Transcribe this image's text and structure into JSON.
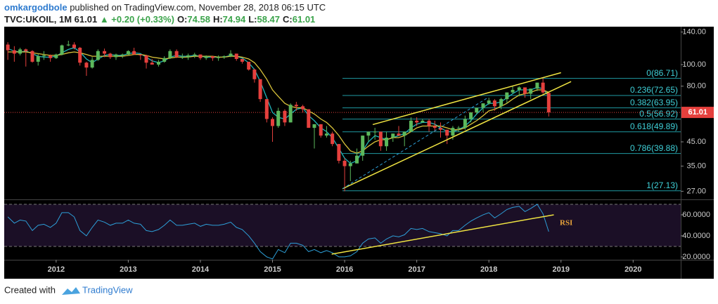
{
  "chart_data": {
    "type": "candlestick",
    "header": {
      "author": "omkargodbole",
      "published": "published on TradingView.com, November 28, 2018 06:15 UTC",
      "symbol": "TVC:UKOIL, 1M 61.01",
      "change": "▲ +0.20 (+0.33%)",
      "ohlc": [
        [
          "O:",
          "74.58"
        ],
        [
          "H:",
          "74.94"
        ],
        [
          "L:",
          "58.47"
        ],
        [
          "C:",
          "61.01"
        ]
      ]
    },
    "x": [
      2011.33,
      2011.42,
      2011.5,
      2011.58,
      2011.67,
      2011.75,
      2011.83,
      2011.92,
      2012,
      2012.08,
      2012.17,
      2012.25,
      2012.33,
      2012.42,
      2012.5,
      2012.58,
      2012.67,
      2012.75,
      2012.83,
      2012.92,
      2013,
      2013.08,
      2013.17,
      2013.25,
      2013.33,
      2013.42,
      2013.5,
      2013.58,
      2013.67,
      2013.75,
      2013.83,
      2013.92,
      2014,
      2014.08,
      2014.17,
      2014.25,
      2014.33,
      2014.42,
      2014.5,
      2014.58,
      2014.67,
      2014.75,
      2014.83,
      2014.92,
      2015,
      2015.08,
      2015.17,
      2015.25,
      2015.33,
      2015.42,
      2015.5,
      2015.58,
      2015.67,
      2015.75,
      2015.83,
      2015.92,
      2016,
      2016.08,
      2016.17,
      2016.25,
      2016.33,
      2016.42,
      2016.5,
      2016.58,
      2016.67,
      2016.75,
      2016.83,
      2016.92,
      2017,
      2017.08,
      2017.17,
      2017.25,
      2017.33,
      2017.42,
      2017.5,
      2017.58,
      2017.67,
      2017.75,
      2017.83,
      2017.92,
      2018,
      2018.08,
      2018.17,
      2018.25,
      2018.33,
      2018.42,
      2018.5,
      2018.58,
      2018.67,
      2018.75,
      2018.83
    ],
    "candles": [
      [
        123,
        126,
        105,
        116
      ],
      [
        116,
        121,
        103,
        112
      ],
      [
        112,
        119,
        110,
        117
      ],
      [
        117,
        118,
        98,
        115
      ],
      [
        115,
        116,
        102,
        103
      ],
      [
        103,
        112,
        99,
        109
      ],
      [
        109,
        115,
        105,
        110
      ],
      [
        110,
        111,
        103,
        107
      ],
      [
        107,
        112,
        106,
        111
      ],
      [
        111,
        123,
        110,
        122
      ],
      [
        122,
        128,
        121,
        123
      ],
      [
        123,
        126,
        117,
        119
      ],
      [
        119,
        120,
        99,
        102
      ],
      [
        102,
        103,
        89,
        97
      ],
      [
        97,
        108,
        96,
        105
      ],
      [
        105,
        117,
        104,
        115
      ],
      [
        115,
        118,
        108,
        112
      ],
      [
        112,
        113,
        106,
        108
      ],
      [
        108,
        112,
        105,
        111
      ],
      [
        111,
        112,
        107,
        111
      ],
      [
        111,
        116,
        110,
        115
      ],
      [
        115,
        119,
        111,
        111
      ],
      [
        111,
        111,
        105,
        110
      ],
      [
        110,
        110,
        96,
        102
      ],
      [
        102,
        106,
        100,
        100
      ],
      [
        100,
        105,
        98,
        103
      ],
      [
        103,
        109,
        102,
        107
      ],
      [
        107,
        117,
        106,
        115
      ],
      [
        115,
        117,
        107,
        108
      ],
      [
        108,
        112,
        106,
        108
      ],
      [
        108,
        112,
        105,
        110
      ],
      [
        110,
        113,
        107,
        111
      ],
      [
        111,
        111,
        105,
        107
      ],
      [
        107,
        110,
        105,
        109
      ],
      [
        109,
        109,
        104,
        107
      ],
      [
        107,
        110,
        104,
        108
      ],
      [
        108,
        110,
        106,
        109
      ],
      [
        109,
        116,
        108,
        112
      ],
      [
        112,
        112,
        104,
        106
      ],
      [
        106,
        106,
        101,
        103
      ],
      [
        103,
        103,
        94,
        95
      ],
      [
        95,
        96,
        83,
        86
      ],
      [
        86,
        86,
        68,
        70
      ],
      [
        70,
        70,
        55,
        57
      ],
      [
        57,
        58,
        45,
        53
      ],
      [
        53,
        64,
        52,
        62
      ],
      [
        62,
        63,
        53,
        55
      ],
      [
        55,
        67,
        55,
        66
      ],
      [
        66,
        68,
        62,
        65
      ],
      [
        65,
        66,
        61,
        63
      ],
      [
        63,
        63,
        52,
        52
      ],
      [
        52,
        54,
        42,
        54
      ],
      [
        54,
        54,
        47,
        48
      ],
      [
        48,
        53,
        47,
        49
      ],
      [
        49,
        50,
        43,
        44
      ],
      [
        44,
        44,
        36,
        37
      ],
      [
        37,
        38,
        27,
        35
      ],
      [
        35,
        37,
        30,
        36
      ],
      [
        36,
        42,
        36,
        39
      ],
      [
        39,
        48,
        37,
        48
      ],
      [
        48,
        50,
        45,
        50
      ],
      [
        50,
        52,
        46,
        50
      ],
      [
        50,
        50,
        41,
        43
      ],
      [
        43,
        50,
        41,
        47
      ],
      [
        47,
        49,
        45,
        49
      ],
      [
        49,
        53,
        48,
        48
      ],
      [
        48,
        50,
        43,
        50
      ],
      [
        50,
        58,
        50,
        56
      ],
      [
        56,
        58,
        53,
        55
      ],
      [
        55,
        57,
        55,
        56
      ],
      [
        56,
        57,
        50,
        53
      ],
      [
        53,
        56,
        50,
        52
      ],
      [
        52,
        55,
        47,
        51
      ],
      [
        51,
        51,
        44,
        48
      ],
      [
        48,
        53,
        46,
        52
      ],
      [
        52,
        53,
        50,
        52
      ],
      [
        52,
        59,
        51,
        57
      ],
      [
        57,
        61,
        55,
        61
      ],
      [
        61,
        64,
        60,
        64
      ],
      [
        64,
        67,
        61,
        67
      ],
      [
        67,
        71,
        66,
        69
      ],
      [
        69,
        70,
        62,
        65
      ],
      [
        65,
        71,
        63,
        70
      ],
      [
        70,
        75,
        67,
        75
      ],
      [
        75,
        80,
        74,
        77
      ],
      [
        77,
        80,
        72,
        79
      ],
      [
        79,
        79,
        71,
        74
      ],
      [
        74,
        78,
        70,
        78
      ],
      [
        78,
        83,
        76,
        83
      ],
      [
        83,
        87,
        74,
        75
      ],
      [
        74.58,
        74.94,
        58.47,
        61.01
      ]
    ],
    "up_color": "#5cb85c",
    "down_color": "#e5403d",
    "moving_averages": [
      {
        "color": "#1fb3b8",
        "values": [
          118,
          115,
          114,
          115,
          112,
          109,
          108,
          108,
          109,
          113,
          117,
          119,
          114,
          106,
          102,
          106,
          110,
          111,
          110,
          110,
          112,
          113,
          112,
          108,
          104,
          102,
          104,
          108,
          110,
          109,
          109,
          110,
          109,
          108,
          108,
          108,
          108,
          110,
          109,
          107,
          102,
          95,
          84,
          71,
          61,
          58,
          57,
          60,
          63,
          64,
          59,
          56,
          52,
          50,
          47,
          42,
          38,
          36,
          37,
          41,
          45,
          48,
          47,
          46,
          47,
          48,
          49,
          52,
          54,
          55,
          55,
          54,
          52,
          50,
          50,
          51,
          53,
          56,
          60,
          64,
          67,
          67,
          68,
          71,
          74,
          77,
          77,
          77,
          79,
          78,
          72
        ]
      },
      {
        "color": "#d8c23a",
        "values": [
          114,
          114,
          114,
          114,
          113,
          112,
          111,
          110,
          110,
          111,
          113,
          114,
          113,
          111,
          109,
          109,
          109,
          109,
          109,
          109,
          110,
          111,
          111,
          110,
          108,
          107,
          106,
          107,
          108,
          108,
          108,
          109,
          109,
          109,
          109,
          108,
          108,
          109,
          109,
          108,
          106,
          102,
          95,
          86,
          77,
          72,
          67,
          65,
          64,
          64,
          62,
          60,
          57,
          55,
          52,
          48,
          44,
          41,
          40,
          41,
          43,
          45,
          46,
          46,
          47,
          47,
          48,
          50,
          52,
          53,
          53,
          53,
          53,
          52,
          51,
          51,
          52,
          54,
          56,
          59,
          62,
          63,
          65,
          67,
          70,
          73,
          74,
          75,
          77,
          77,
          75
        ]
      }
    ],
    "xlim": [
      2011.28,
      2020.66
    ],
    "xticks": [
      2012,
      2013,
      2014,
      2015,
      2016,
      2017,
      2018,
      2019,
      2020
    ],
    "ylim": [
      25,
      148
    ],
    "log_scale": true,
    "yticks": [
      {
        "value": 140,
        "label": "140.00"
      },
      {
        "value": 100,
        "label": "100.00"
      },
      {
        "value": 80,
        "label": "80.00"
      },
      {
        "value": 45,
        "label": "45.00"
      },
      {
        "value": 35,
        "label": "35.00"
      },
      {
        "value": 27,
        "label": "27.00"
      }
    ],
    "last_price": {
      "value": 61.01,
      "label": "61.01",
      "color": "#e5403d"
    },
    "fib": {
      "color": "#1f9aa3",
      "start_x": 2015.97,
      "levels": [
        {
          "value": 86.71,
          "label": "0(86.71)"
        },
        {
          "value": 72.65,
          "label": "0.236(72.65)"
        },
        {
          "value": 63.95,
          "label": "0.382(63.95)"
        },
        {
          "value": 56.92,
          "label": "0.5(56.92)"
        },
        {
          "value": 49.89,
          "label": "0.618(49.89)"
        },
        {
          "value": 39.88,
          "label": "0.786(39.88)"
        },
        {
          "value": 27.13,
          "label": "1(27.13)"
        }
      ]
    },
    "trendlines": [
      {
        "color": "#f0e442",
        "x": [
          2016.39,
          2019.0
        ],
        "y": [
          53.8,
          92
        ],
        "dashed": false
      },
      {
        "color": "#f0e442",
        "x": [
          2015.97,
          2019.14
        ],
        "y": [
          27.7,
          83.9
        ],
        "dashed": false
      },
      {
        "color": "#f0e442",
        "x": [
          2015.97,
          2017.98
        ],
        "y": [
          27.7,
          70.9
        ],
        "dashed": true
      }
    ],
    "rsi": {
      "label": "RSI",
      "color": "#2d9fd8",
      "label_color": "#e8a33a",
      "values": [
        58,
        52,
        55,
        54,
        45,
        50,
        51,
        48,
        52,
        62,
        62,
        58,
        45,
        40,
        48,
        55,
        53,
        50,
        52,
        52,
        55,
        52,
        51,
        45,
        44,
        46,
        50,
        55,
        50,
        50,
        51,
        52,
        49,
        51,
        50,
        50,
        51,
        53,
        48,
        46,
        40,
        33,
        25,
        20,
        18,
        27,
        24,
        33,
        33,
        31,
        25,
        27,
        24,
        26,
        24,
        20,
        20,
        21,
        25,
        33,
        37,
        38,
        33,
        37,
        40,
        39,
        41,
        47,
        46,
        47,
        44,
        43,
        42,
        40,
        45,
        45,
        50,
        54,
        57,
        60,
        62,
        57,
        61,
        65,
        67,
        68,
        63,
        66,
        70,
        61,
        44
      ],
      "ylim": [
        17.3,
        73.3
      ],
      "yticks": [
        {
          "value": 60,
          "label": "60.0000"
        },
        {
          "value": 40,
          "label": "40.0000"
        },
        {
          "value": 20,
          "label": "20.0000"
        }
      ],
      "bands": [
        30,
        70
      ],
      "trendline": {
        "color": "#f0e442",
        "x": [
          2015.82,
          2018.9
        ],
        "y": [
          22.6,
          60
        ]
      }
    },
    "footer": {
      "text": "Created with",
      "brand": "TradingView"
    }
  }
}
